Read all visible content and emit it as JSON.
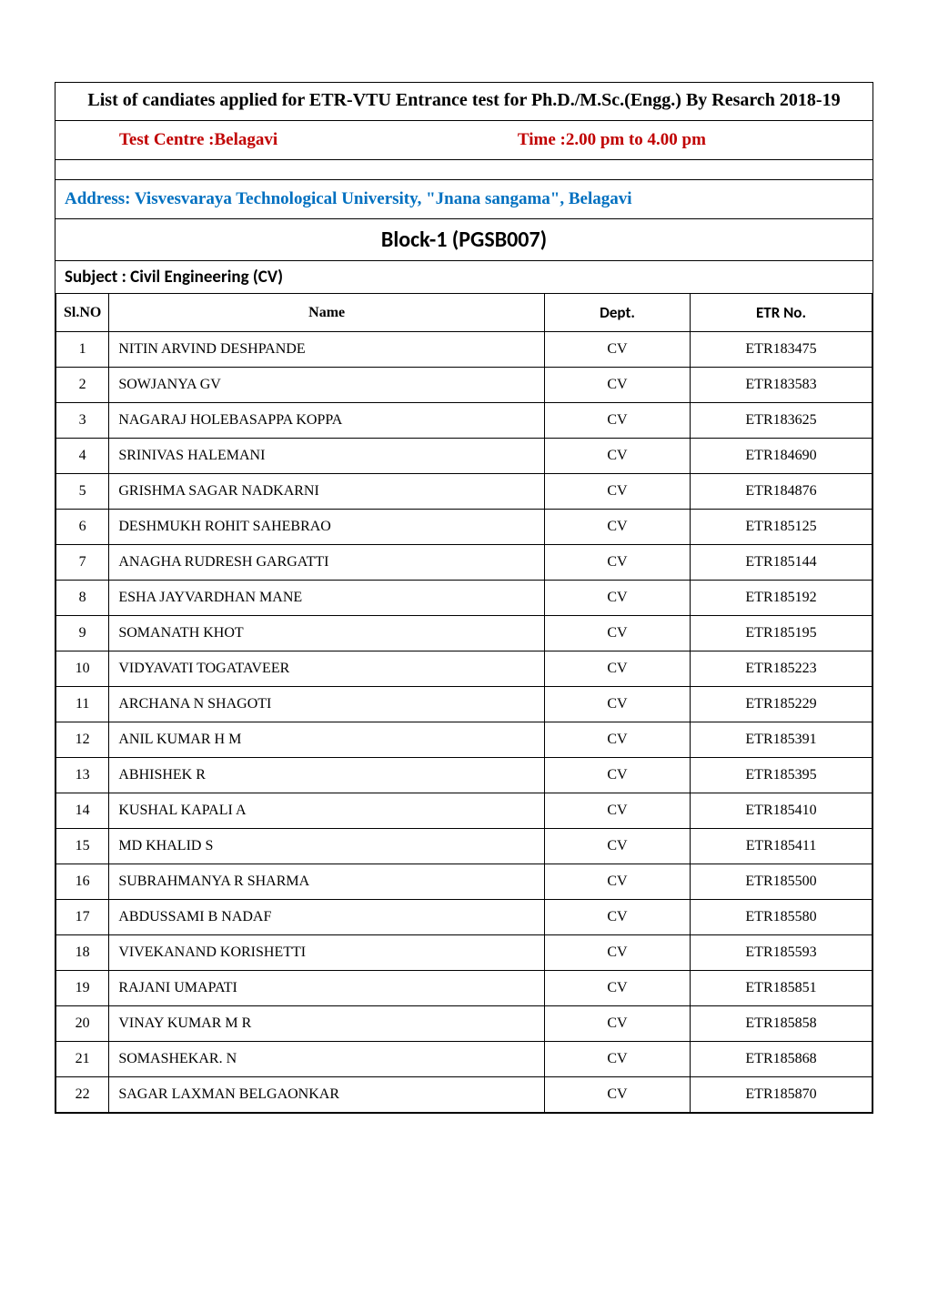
{
  "title": "List of candiates  applied for  ETR-VTU Entrance test for  Ph.D./M.Sc.(Engg.) By Resarch 2018-19",
  "test_centre_label": "Test Centre  :Belagavi",
  "time_label": "Time :2.00 pm to 4.00 pm",
  "address": "Address: Visvesvaraya Technological University, \"Jnana sangama\", Belagavi",
  "block": "Block-1 (PGSB007)",
  "subject": "Subject : Civil Engineering (CV)",
  "centre_color": "#c00000",
  "address_color": "#0070c0",
  "columns": {
    "slno": "Sl.NO",
    "name": "Name",
    "dept": "Dept.",
    "etr": "ETR No."
  },
  "rows": [
    {
      "sl": "1",
      "name": "NITIN ARVIND DESHPANDE",
      "dept": "CV",
      "etr": "ETR183475"
    },
    {
      "sl": "2",
      "name": "SOWJANYA GV",
      "dept": "CV",
      "etr": "ETR183583"
    },
    {
      "sl": "3",
      "name": "NAGARAJ HOLEBASAPPA KOPPA",
      "dept": "CV",
      "etr": "ETR183625"
    },
    {
      "sl": "4",
      "name": "SRINIVAS HALEMANI",
      "dept": "CV",
      "etr": "ETR184690"
    },
    {
      "sl": "5",
      "name": "GRISHMA SAGAR NADKARNI",
      "dept": "CV",
      "etr": "ETR184876"
    },
    {
      "sl": "6",
      "name": "DESHMUKH ROHIT SAHEBRAO",
      "dept": "CV",
      "etr": "ETR185125"
    },
    {
      "sl": "7",
      "name": "ANAGHA RUDRESH GARGATTI",
      "dept": "CV",
      "etr": "ETR185144"
    },
    {
      "sl": "8",
      "name": "ESHA JAYVARDHAN MANE",
      "dept": "CV",
      "etr": "ETR185192"
    },
    {
      "sl": "9",
      "name": "SOMANATH KHOT",
      "dept": "CV",
      "etr": "ETR185195"
    },
    {
      "sl": "10",
      "name": "VIDYAVATI TOGATAVEER",
      "dept": "CV",
      "etr": "ETR185223"
    },
    {
      "sl": "11",
      "name": "ARCHANA N SHAGOTI",
      "dept": "CV",
      "etr": "ETR185229"
    },
    {
      "sl": "12",
      "name": "ANIL KUMAR H M",
      "dept": "CV",
      "etr": "ETR185391"
    },
    {
      "sl": "13",
      "name": "ABHISHEK R",
      "dept": "CV",
      "etr": "ETR185395"
    },
    {
      "sl": "14",
      "name": "KUSHAL KAPALI A",
      "dept": "CV",
      "etr": "ETR185410"
    },
    {
      "sl": "15",
      "name": "MD KHALID S",
      "dept": "CV",
      "etr": "ETR185411"
    },
    {
      "sl": "16",
      "name": "SUBRAHMANYA R SHARMA",
      "dept": "CV",
      "etr": "ETR185500"
    },
    {
      "sl": "17",
      "name": "ABDUSSAMI B NADAF",
      "dept": "CV",
      "etr": "ETR185580"
    },
    {
      "sl": "18",
      "name": "VIVEKANAND KORISHETTI",
      "dept": "CV",
      "etr": "ETR185593"
    },
    {
      "sl": "19",
      "name": "RAJANI UMAPATI",
      "dept": "CV",
      "etr": "ETR185851"
    },
    {
      "sl": "20",
      "name": "VINAY KUMAR M R",
      "dept": "CV",
      "etr": "ETR185858"
    },
    {
      "sl": "21",
      "name": "SOMASHEKAR. N",
      "dept": "CV",
      "etr": "ETR185868"
    },
    {
      "sl": "22",
      "name": "SAGAR LAXMAN BELGAONKAR",
      "dept": "CV",
      "etr": "ETR185870"
    }
  ]
}
